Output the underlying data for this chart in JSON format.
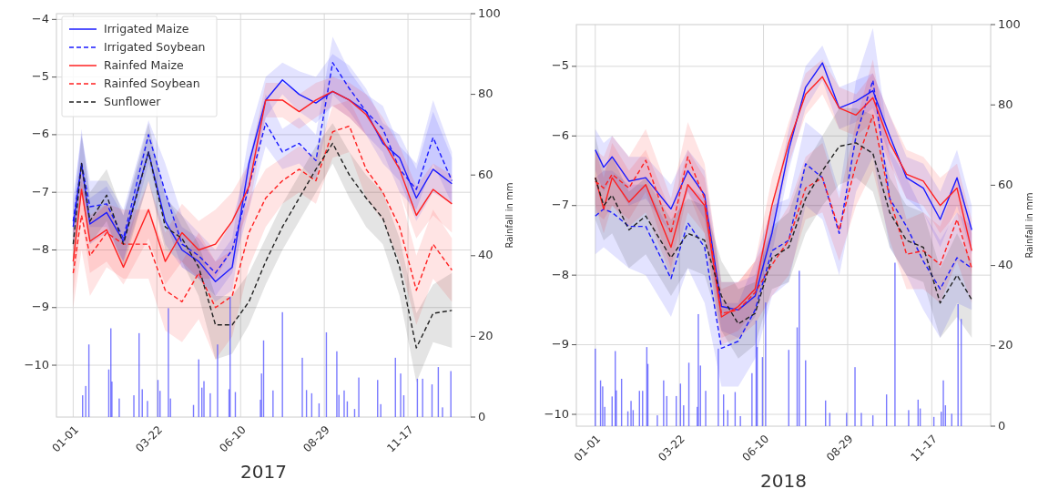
{
  "chart_data": [
    {
      "type": "line",
      "xlabel": "2017",
      "y2label": "Rainfall in mm",
      "x": [
        "2017-01-01",
        "2017-01-09",
        "2017-01-17",
        "2017-02-02",
        "2017-02-18",
        "2017-03-14",
        "2017-03-30",
        "2017-04-15",
        "2017-05-01",
        "2017-05-17",
        "2017-06-02",
        "2017-06-18",
        "2017-07-04",
        "2017-07-20",
        "2017-08-05",
        "2017-08-21",
        "2017-09-06",
        "2017-09-22",
        "2017-10-08",
        "2017-10-24",
        "2017-11-09",
        "2017-11-25",
        "2017-12-11",
        "2017-12-29"
      ],
      "xlim": [
        "2016-12-16",
        "2018-01-16"
      ],
      "xticks": [
        {
          "value": "2017-01-01",
          "label": "01-01"
        },
        {
          "value": "2017-03-22",
          "label": "03-22"
        },
        {
          "value": "2017-06-10",
          "label": "06-10"
        },
        {
          "value": "2017-08-29",
          "label": "08-29"
        },
        {
          "value": "2017-11-17",
          "label": "11-17"
        }
      ],
      "ylim": [
        -10.9,
        -3.9
      ],
      "yticks": [
        -10,
        -9,
        -8,
        -7,
        -6,
        -5,
        -4
      ],
      "y2lim": [
        0,
        100
      ],
      "y2ticks": [
        0,
        20,
        40,
        60,
        80,
        100
      ],
      "grid": true,
      "legend": "top left",
      "series": [
        {
          "type": "bar",
          "axis": "y2",
          "color": "#4d4dff",
          "x": [
            "2017-01-10",
            "2017-01-13",
            "2017-01-16",
            "2017-02-04",
            "2017-02-06",
            "2017-02-07",
            "2017-02-14",
            "2017-02-28",
            "2017-03-05",
            "2017-03-08",
            "2017-03-13",
            "2017-03-23",
            "2017-03-25",
            "2017-04-02",
            "2017-04-04",
            "2017-04-26",
            "2017-05-01",
            "2017-05-04",
            "2017-05-06",
            "2017-05-12",
            "2017-05-19",
            "2017-05-30",
            "2017-05-31",
            "2017-06-05",
            "2017-06-29",
            "2017-06-30",
            "2017-07-02",
            "2017-07-11",
            "2017-07-20",
            "2017-08-08",
            "2017-08-12",
            "2017-08-17",
            "2017-08-24",
            "2017-08-31",
            "2017-09-10",
            "2017-09-12",
            "2017-09-17",
            "2017-09-20",
            "2017-09-27",
            "2017-10-01",
            "2017-10-19",
            "2017-10-22",
            "2017-11-05",
            "2017-11-10",
            "2017-11-13",
            "2017-11-26",
            "2017-12-01",
            "2017-12-10",
            "2017-12-16",
            "2017-12-20",
            "2017-12-28"
          ],
          "values": [
            5.4,
            7.7,
            18,
            11.8,
            22,
            8.8,
            4.6,
            5.4,
            20.8,
            6.9,
            4.0,
            9.2,
            6.5,
            27,
            4.6,
            3.0,
            14.3,
            7.3,
            8.9,
            5.9,
            18,
            6.9,
            29.8,
            6.2,
            4.3,
            10.8,
            19,
            6.6,
            26,
            14.7,
            6.7,
            5.9,
            3.4,
            21,
            16.3,
            5.5,
            6.6,
            3.9,
            2,
            9.8,
            9.2,
            3.2,
            14.7,
            10.8,
            5.4,
            9.5,
            9.5,
            8.1,
            12.4,
            2.4,
            11.4
          ]
        },
        {
          "name": "Irrigated Maize",
          "color": "#1a1aff",
          "line_style": "solid",
          "values": [
            -7.6,
            -6.5,
            -7.55,
            -7.35,
            -7.85,
            -6.3,
            -7.5,
            -8.0,
            -8.2,
            -8.55,
            -8.3,
            -6.5,
            -5.4,
            -5.05,
            -5.3,
            -5.45,
            -5.25,
            -5.4,
            -5.6,
            -6.15,
            -6.4,
            -7.1,
            -6.6,
            -6.85
          ],
          "lower": [
            -8.0,
            -7.0,
            -7.9,
            -7.7,
            -8.2,
            -6.8,
            -7.9,
            -8.3,
            -8.5,
            -8.9,
            -8.7,
            -6.9,
            -5.7,
            -5.3,
            -5.6,
            -5.8,
            -5.5,
            -5.7,
            -6.0,
            -6.5,
            -6.8,
            -7.5,
            -7.0,
            -7.2
          ],
          "upper": [
            -7.2,
            -5.9,
            -7.1,
            -6.9,
            -7.4,
            -5.95,
            -7.0,
            -7.6,
            -7.8,
            -8.2,
            -7.8,
            -6.0,
            -5.0,
            -4.75,
            -4.9,
            -5.0,
            -4.6,
            -4.8,
            -5.2,
            -5.8,
            -6.0,
            -6.6,
            -5.6,
            -6.4
          ]
        },
        {
          "name": "Irrigated Soybean",
          "color": "#1a1aff",
          "line_style": "dashed",
          "values": [
            -7.5,
            -6.5,
            -7.25,
            -7.2,
            -7.8,
            -6.0,
            -7.0,
            -7.9,
            -8.1,
            -8.4,
            -8.0,
            -6.9,
            -5.8,
            -6.3,
            -6.15,
            -6.45,
            -4.75,
            -5.2,
            -5.6,
            -5.9,
            -6.6,
            -6.95,
            -6.05,
            -6.8
          ],
          "lower": [
            -7.9,
            -6.9,
            -7.6,
            -7.6,
            -8.2,
            -6.5,
            -7.5,
            -8.3,
            -8.5,
            -8.8,
            -8.4,
            -7.3,
            -6.2,
            -6.6,
            -6.5,
            -6.8,
            -5.3,
            -5.6,
            -6.0,
            -6.3,
            -7.0,
            -7.3,
            -6.5,
            -7.2
          ],
          "upper": [
            -7.1,
            -6.0,
            -6.8,
            -6.8,
            -7.3,
            -5.75,
            -6.5,
            -7.4,
            -7.7,
            -8.0,
            -7.5,
            -6.4,
            -5.3,
            -5.9,
            -5.7,
            -6.0,
            -4.3,
            -4.9,
            -5.3,
            -5.5,
            -6.2,
            -6.5,
            -5.4,
            -6.3
          ]
        },
        {
          "name": "Rainfed Maize",
          "color": "#ff2020",
          "line_style": "solid",
          "values": [
            -8.2,
            -6.95,
            -7.85,
            -7.65,
            -8.3,
            -7.3,
            -8.2,
            -7.7,
            -8.0,
            -7.9,
            -7.5,
            -6.9,
            -5.4,
            -5.4,
            -5.6,
            -5.4,
            -5.25,
            -5.4,
            -5.65,
            -6.1,
            -6.6,
            -7.4,
            -6.95,
            -7.2
          ],
          "lower": [
            -8.8,
            -7.4,
            -8.4,
            -8.2,
            -8.6,
            -7.8,
            -8.6,
            -8.2,
            -8.5,
            -8.5,
            -8.0,
            -7.3,
            -5.7,
            -5.7,
            -5.9,
            -5.7,
            -5.5,
            -5.7,
            -6.0,
            -6.5,
            -7.0,
            -7.8,
            -7.4,
            -7.7
          ],
          "upper": [
            -7.6,
            -6.5,
            -7.4,
            -7.2,
            -7.9,
            -6.8,
            -7.7,
            -7.2,
            -7.5,
            -7.3,
            -7.0,
            -6.5,
            -5.1,
            -5.1,
            -5.3,
            -5.1,
            -5.0,
            -5.1,
            -5.3,
            -5.7,
            -6.2,
            -6.9,
            -6.5,
            -6.7
          ]
        },
        {
          "name": "Rainfed Soybean",
          "color": "#ff2020",
          "line_style": "dashed",
          "values": [
            -8.4,
            -7.4,
            -8.1,
            -7.7,
            -7.9,
            -7.9,
            -8.7,
            -8.9,
            -8.4,
            -9.0,
            -8.8,
            -7.7,
            -7.1,
            -6.8,
            -6.6,
            -6.8,
            -5.95,
            -5.85,
            -6.6,
            -7.0,
            -7.6,
            -8.7,
            -7.9,
            -8.35
          ],
          "lower": [
            -9.0,
            -8.0,
            -8.8,
            -8.3,
            -8.5,
            -8.5,
            -9.4,
            -9.6,
            -9.2,
            -9.9,
            -9.5,
            -8.3,
            -7.6,
            -7.2,
            -7.0,
            -7.2,
            -6.4,
            -6.3,
            -7.1,
            -7.5,
            -8.2,
            -9.3,
            -8.5,
            -8.9
          ],
          "upper": [
            -7.8,
            -6.8,
            -7.5,
            -7.2,
            -7.3,
            -7.3,
            -8.0,
            -8.2,
            -7.7,
            -8.2,
            -8.0,
            -7.1,
            -6.6,
            -6.4,
            -6.2,
            -6.4,
            -5.5,
            -5.4,
            -6.0,
            -6.5,
            -7.0,
            -8.1,
            -7.3,
            -7.8
          ]
        },
        {
          "name": "Sunflower",
          "color": "#222222",
          "line_style": "dashed",
          "values": [
            -7.9,
            -6.5,
            -7.5,
            -7.05,
            -7.9,
            -6.3,
            -7.6,
            -7.8,
            -8.3,
            -9.3,
            -9.3,
            -8.9,
            -8.2,
            -7.6,
            -7.1,
            -6.6,
            -6.15,
            -6.7,
            -7.1,
            -7.45,
            -8.3,
            -9.7,
            -9.1,
            -9.05
          ],
          "lower": [
            -8.3,
            -7.0,
            -7.9,
            -7.5,
            -8.3,
            -6.8,
            -8.0,
            -8.2,
            -8.8,
            -9.9,
            -9.8,
            -9.3,
            -8.6,
            -8.0,
            -7.5,
            -7.0,
            -6.5,
            -7.1,
            -7.6,
            -7.9,
            -8.8,
            -10.3,
            -9.6,
            -9.7
          ],
          "upper": [
            -7.5,
            -6.0,
            -7.0,
            -6.6,
            -7.4,
            -5.8,
            -7.1,
            -7.4,
            -7.9,
            -8.8,
            -8.8,
            -8.4,
            -7.8,
            -7.2,
            -6.7,
            -6.2,
            -5.8,
            -6.3,
            -6.7,
            -7.0,
            -7.8,
            -9.1,
            -8.6,
            -8.4
          ]
        }
      ]
    },
    {
      "type": "line",
      "xlabel": "2018",
      "y2label": "Rainfall in mm",
      "x": [
        "2018-01-01",
        "2018-01-09",
        "2018-01-17",
        "2018-02-02",
        "2018-02-18",
        "2018-03-14",
        "2018-03-30",
        "2018-04-15",
        "2018-05-01",
        "2018-05-17",
        "2018-06-02",
        "2018-06-18",
        "2018-07-04",
        "2018-07-20",
        "2018-08-05",
        "2018-08-21",
        "2018-09-06",
        "2018-09-22",
        "2018-10-08",
        "2018-10-24",
        "2018-11-09",
        "2018-11-25",
        "2018-12-11",
        "2018-12-25"
      ],
      "xlim": [
        "2017-12-14",
        "2019-01-12"
      ],
      "xticks": [
        {
          "value": "2018-01-01",
          "label": "01-01"
        },
        {
          "value": "2018-03-22",
          "label": "03-22"
        },
        {
          "value": "2018-06-10",
          "label": "06-10"
        },
        {
          "value": "2018-08-29",
          "label": "08-29"
        },
        {
          "value": "2018-11-17",
          "label": "11-17"
        }
      ],
      "ylim": [
        -10.17,
        -4.4
      ],
      "yticks": [
        -10,
        -9,
        -8,
        -7,
        -6,
        -5
      ],
      "y2lim": [
        0,
        100
      ],
      "y2ticks": [
        0,
        20,
        40,
        60,
        80,
        100
      ],
      "grid": true,
      "series": [
        {
          "type": "bar",
          "axis": "y2",
          "color": "#4d4dff",
          "x": [
            "2018-01-01",
            "2018-01-06",
            "2018-01-08",
            "2018-01-10",
            "2018-01-17",
            "2018-01-20",
            "2018-01-21",
            "2018-01-26",
            "2018-02-01",
            "2018-02-04",
            "2018-02-06",
            "2018-02-12",
            "2018-02-15",
            "2018-02-19",
            "2018-02-20",
            "2018-03-01",
            "2018-03-07",
            "2018-03-10",
            "2018-03-19",
            "2018-03-23",
            "2018-03-26",
            "2018-03-31",
            "2018-04-08",
            "2018-04-09",
            "2018-04-11",
            "2018-04-16",
            "2018-04-28",
            "2018-05-03",
            "2018-05-07",
            "2018-05-14",
            "2018-05-19",
            "2018-05-30",
            "2018-06-03",
            "2018-06-04",
            "2018-06-09",
            "2018-06-12",
            "2018-07-04",
            "2018-07-12",
            "2018-07-14",
            "2018-07-20",
            "2018-08-08",
            "2018-08-12",
            "2018-08-28",
            "2018-09-05",
            "2018-09-11",
            "2018-09-22",
            "2018-10-05",
            "2018-10-13",
            "2018-10-26",
            "2018-11-04",
            "2018-11-06",
            "2018-11-19",
            "2018-11-26",
            "2018-11-28",
            "2018-11-30",
            "2018-12-06",
            "2018-12-12",
            "2018-12-15"
          ],
          "values": [
            19.3,
            11.4,
            9.9,
            4.8,
            7.4,
            18.7,
            8.9,
            11.8,
            3.7,
            6.3,
            4,
            8.8,
            8.8,
            19.7,
            15.5,
            2.7,
            11.4,
            7.5,
            7.5,
            10.6,
            5.2,
            15.8,
            4.8,
            27.9,
            15.1,
            8.8,
            19.3,
            7.9,
            4,
            8.5,
            2.5,
            13.2,
            26.3,
            19.7,
            17.2,
            30.8,
            19,
            24.6,
            38.7,
            16.4,
            6.4,
            3.3,
            3.3,
            14.7,
            3.3,
            2.7,
            7.9,
            40.7,
            4,
            6.6,
            4.4,
            2.3,
            3.6,
            11.4,
            5.2,
            3.1,
            30.4,
            26.7
          ]
        },
        {
          "color": "#1a1aff",
          "line_style": "solid",
          "values": [
            -6.2,
            -6.45,
            -6.3,
            -6.65,
            -6.6,
            -7.05,
            -6.5,
            -6.85,
            -8.45,
            -8.5,
            -8.3,
            -7.4,
            -6.2,
            -5.3,
            -4.95,
            -5.6,
            -5.5,
            -5.35,
            -6.0,
            -6.6,
            -6.75,
            -7.2,
            -6.6,
            -7.35
          ],
          "lower": [
            -6.5,
            -6.8,
            -6.6,
            -7.0,
            -6.9,
            -7.4,
            -6.8,
            -7.2,
            -8.8,
            -8.9,
            -8.6,
            -7.7,
            -6.5,
            -5.6,
            -5.2,
            -5.9,
            -5.8,
            -5.6,
            -6.3,
            -6.9,
            -7.1,
            -7.6,
            -7.0,
            -7.7
          ],
          "upper": [
            -5.9,
            -6.1,
            -6.0,
            -6.3,
            -6.3,
            -6.7,
            -6.2,
            -6.5,
            -8.1,
            -8.1,
            -8.0,
            -7.1,
            -5.9,
            -5.0,
            -4.7,
            -5.3,
            -5.2,
            -5.1,
            -5.7,
            -6.3,
            -6.4,
            -6.8,
            -6.2,
            -7.0
          ]
        },
        {
          "color": "#1a1aff",
          "line_style": "dashed",
          "values": [
            -7.15,
            -7.05,
            -7.1,
            -7.3,
            -7.3,
            -8.05,
            -7.25,
            -7.6,
            -9.05,
            -8.95,
            -8.5,
            -7.65,
            -7.5,
            -6.4,
            -6.6,
            -7.4,
            -6.0,
            -5.2,
            -6.9,
            -7.3,
            -7.8,
            -8.2,
            -7.75,
            -7.9
          ],
          "lower": [
            -7.7,
            -7.6,
            -7.7,
            -7.9,
            -8.0,
            -8.6,
            -7.9,
            -8.4,
            -9.6,
            -9.6,
            -9.2,
            -8.3,
            -8.1,
            -7.0,
            -7.2,
            -8.0,
            -6.8,
            -6.3,
            -7.6,
            -8.0,
            -8.5,
            -8.9,
            -8.4,
            -8.5
          ],
          "upper": [
            -6.6,
            -6.5,
            -6.5,
            -6.7,
            -6.7,
            -7.4,
            -6.7,
            -6.9,
            -8.4,
            -8.4,
            -7.8,
            -7.0,
            -6.9,
            -5.8,
            -6.0,
            -6.8,
            -5.2,
            -4.45,
            -6.2,
            -6.6,
            -7.1,
            -7.5,
            -7.1,
            -7.3
          ]
        },
        {
          "color": "#ff2020",
          "line_style": "solid",
          "values": [
            -6.6,
            -7.05,
            -6.6,
            -6.95,
            -6.7,
            -7.6,
            -6.7,
            -7.0,
            -8.6,
            -8.45,
            -8.2,
            -7.0,
            -6.1,
            -5.4,
            -5.15,
            -5.6,
            -5.7,
            -5.45,
            -6.1,
            -6.55,
            -6.65,
            -7.0,
            -6.75,
            -7.65
          ],
          "lower": [
            -7.0,
            -7.4,
            -7.0,
            -7.3,
            -7.1,
            -8.0,
            -7.1,
            -7.4,
            -8.9,
            -8.8,
            -8.5,
            -7.4,
            -6.4,
            -5.7,
            -5.4,
            -5.9,
            -6.0,
            -5.8,
            -6.4,
            -6.9,
            -7.0,
            -7.4,
            -7.1,
            -8.0
          ],
          "upper": [
            -6.2,
            -6.6,
            -6.1,
            -6.5,
            -6.2,
            -7.1,
            -6.2,
            -6.6,
            -8.2,
            -8.1,
            -7.8,
            -6.6,
            -5.8,
            -5.1,
            -4.9,
            -5.3,
            -5.4,
            -5.1,
            -5.7,
            -6.2,
            -6.3,
            -6.6,
            -6.4,
            -7.2
          ]
        },
        {
          "color": "#ff2020",
          "line_style": "dashed",
          "values": [
            -6.65,
            -6.75,
            -6.55,
            -6.75,
            -6.35,
            -7.4,
            -6.3,
            -6.9,
            -8.55,
            -8.5,
            -8.25,
            -7.85,
            -7.5,
            -6.75,
            -6.6,
            -7.35,
            -6.4,
            -5.7,
            -6.9,
            -7.7,
            -7.65,
            -7.85,
            -7.2,
            -7.9
          ],
          "lower": [
            -7.1,
            -7.2,
            -7.0,
            -7.2,
            -6.8,
            -7.9,
            -6.8,
            -7.4,
            -9.0,
            -8.9,
            -8.7,
            -8.3,
            -8.0,
            -7.2,
            -7.1,
            -7.8,
            -7.0,
            -6.5,
            -7.5,
            -8.2,
            -8.2,
            -8.4,
            -7.8,
            -8.4
          ],
          "upper": [
            -6.2,
            -6.3,
            -6.0,
            -6.3,
            -5.9,
            -6.9,
            -5.8,
            -6.4,
            -8.1,
            -8.1,
            -7.8,
            -7.4,
            -7.0,
            -6.3,
            -6.1,
            -6.9,
            -5.8,
            -4.9,
            -6.3,
            -7.2,
            -7.1,
            -7.3,
            -6.6,
            -7.4
          ]
        },
        {
          "color": "#222222",
          "line_style": "dashed",
          "values": [
            -6.6,
            -7.0,
            -6.85,
            -7.35,
            -7.15,
            -7.75,
            -7.4,
            -7.5,
            -8.3,
            -8.7,
            -8.55,
            -7.75,
            -7.6,
            -6.9,
            -6.5,
            -6.15,
            -6.1,
            -6.25,
            -7.1,
            -7.5,
            -7.6,
            -8.4,
            -8.0,
            -8.35
          ],
          "lower": [
            -7.2,
            -7.5,
            -7.4,
            -7.9,
            -7.7,
            -8.3,
            -7.9,
            -8.0,
            -8.8,
            -9.2,
            -9.0,
            -8.2,
            -8.1,
            -7.4,
            -7.0,
            -6.7,
            -6.6,
            -6.8,
            -7.6,
            -8.0,
            -8.1,
            -8.9,
            -8.6,
            -8.9
          ],
          "upper": [
            -6.0,
            -6.5,
            -6.3,
            -6.8,
            -6.6,
            -7.2,
            -6.9,
            -7.0,
            -7.8,
            -8.2,
            -8.1,
            -7.3,
            -7.1,
            -6.4,
            -6.0,
            -5.6,
            -5.6,
            -5.7,
            -6.6,
            -7.0,
            -7.1,
            -7.9,
            -7.4,
            -7.8
          ]
        }
      ]
    }
  ]
}
